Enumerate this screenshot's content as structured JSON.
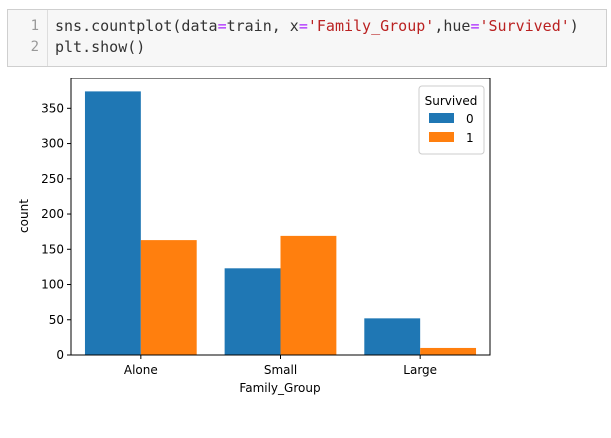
{
  "code_cell": {
    "lines": [
      {
        "number": "1",
        "tokens": [
          {
            "text": "sns.countplot(data",
            "kind": "plain"
          },
          {
            "text": "=",
            "kind": "op"
          },
          {
            "text": "train, x",
            "kind": "plain"
          },
          {
            "text": "=",
            "kind": "op"
          },
          {
            "text": "'Family_Group'",
            "kind": "str"
          },
          {
            "text": ",hue",
            "kind": "plain"
          },
          {
            "text": "=",
            "kind": "op"
          },
          {
            "text": "'Survived'",
            "kind": "str"
          },
          {
            "text": ")",
            "kind": "plain"
          }
        ]
      },
      {
        "number": "2",
        "tokens": [
          {
            "text": "plt.show()",
            "kind": "plain"
          }
        ]
      }
    ]
  },
  "chart_data": {
    "type": "bar",
    "categories": [
      "Alone",
      "Small",
      "Large"
    ],
    "series": [
      {
        "name": "0",
        "color": "#1f77b4",
        "values": [
          374,
          123,
          52
        ]
      },
      {
        "name": "1",
        "color": "#ff7f0e",
        "values": [
          163,
          169,
          10
        ]
      }
    ],
    "xlabel": "Family_Group",
    "ylabel": "count",
    "ylim": [
      0,
      393
    ],
    "yticks": [
      0,
      50,
      100,
      150,
      200,
      250,
      300,
      350
    ],
    "legend": {
      "title": "Survived",
      "placement": "top-right"
    },
    "grid": false
  }
}
